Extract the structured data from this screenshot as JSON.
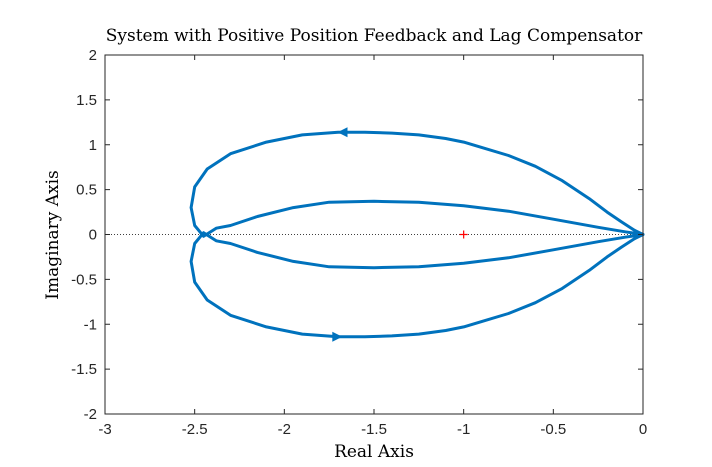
{
  "chart_data": {
    "type": "line",
    "title": "System with Positive Position Feedback and Lag Compensator",
    "xlabel": "Real Axis",
    "ylabel": "Imaginary Axis",
    "xlim": [
      -3,
      0
    ],
    "ylim": [
      -2,
      2
    ],
    "xticks": [
      -3,
      -2.5,
      -2,
      -1.5,
      -1,
      -0.5,
      0
    ],
    "xtick_labels": [
      "-3",
      "-2.5",
      "-2",
      "-1.5",
      "-1",
      "-0.5",
      "0"
    ],
    "yticks": [
      -2,
      -1.5,
      -1,
      -0.5,
      0,
      0.5,
      1,
      1.5,
      2
    ],
    "ytick_labels": [
      "-2",
      "-1.5",
      "-1",
      "-0.5",
      "0",
      "0.5",
      "1",
      "1.5",
      "2"
    ],
    "grid": false,
    "colors": {
      "curve": "#0072bd",
      "critical_point": "#ff0000",
      "zero_line": "#000000"
    },
    "series": [
      {
        "x": [
          0,
          -0.05,
          -0.12,
          -0.2,
          -0.3,
          -0.45,
          -0.6,
          -0.75,
          -0.9,
          -1.0,
          -1.1,
          -1.25,
          -1.4,
          -1.55,
          -1.7,
          -1.9,
          -2.1,
          -2.3,
          -2.43,
          -2.5,
          -2.52,
          -2.5,
          -2.45,
          -2.38,
          -2.3,
          -2.15,
          -1.95,
          -1.75,
          -1.5,
          -1.25,
          -1.0,
          -0.75,
          -0.5,
          -0.25,
          -0.1,
          0
        ],
        "y": [
          0,
          0.05,
          0.14,
          0.25,
          0.4,
          0.6,
          0.76,
          0.88,
          0.97,
          1.03,
          1.07,
          1.11,
          1.13,
          1.14,
          1.14,
          1.11,
          1.03,
          0.9,
          0.73,
          0.53,
          0.3,
          0.1,
          -0.02,
          0.07,
          0.1,
          0.2,
          0.3,
          0.36,
          0.37,
          0.36,
          0.32,
          0.26,
          0.17,
          0.08,
          0.03,
          0
        ]
      },
      {
        "x": [
          0,
          -0.05,
          -0.12,
          -0.2,
          -0.3,
          -0.45,
          -0.6,
          -0.75,
          -0.9,
          -1.0,
          -1.1,
          -1.25,
          -1.4,
          -1.55,
          -1.7,
          -1.9,
          -2.1,
          -2.3,
          -2.43,
          -2.5,
          -2.52,
          -2.5,
          -2.45,
          -2.38,
          -2.3,
          -2.15,
          -1.95,
          -1.75,
          -1.5,
          -1.25,
          -1.0,
          -0.75,
          -0.5,
          -0.25,
          -0.1,
          0
        ],
        "y": [
          0,
          -0.05,
          -0.14,
          -0.25,
          -0.4,
          -0.6,
          -0.76,
          -0.88,
          -0.97,
          -1.03,
          -1.07,
          -1.11,
          -1.13,
          -1.14,
          -1.14,
          -1.11,
          -1.03,
          -0.9,
          -0.73,
          -0.53,
          -0.3,
          -0.1,
          0.02,
          -0.07,
          -0.1,
          -0.2,
          -0.3,
          -0.36,
          -0.37,
          -0.36,
          -0.32,
          -0.26,
          -0.17,
          -0.08,
          -0.03,
          0
        ]
      }
    ],
    "arrows": [
      {
        "x": -1.67,
        "y": 1.14,
        "direction": "left"
      },
      {
        "x": -1.71,
        "y": -1.14,
        "direction": "right"
      }
    ],
    "critical_point": {
      "x": -1,
      "y": 0,
      "marker": "+"
    }
  }
}
